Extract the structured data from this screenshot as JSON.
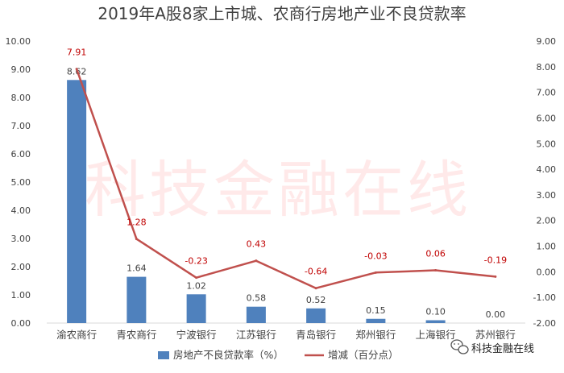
{
  "chart_data": {
    "type": "bar",
    "title": "2019年A股8家上市城、农商行房地产业不良贷款率",
    "categories": [
      "渝农商行",
      "青农商行",
      "宁波银行",
      "江苏银行",
      "青岛银行",
      "郑州银行",
      "上海银行",
      "苏州银行"
    ],
    "left_axis": {
      "min": 0,
      "max": 10,
      "step": 1,
      "format": "2dp"
    },
    "right_axis": {
      "min": -2,
      "max": 9,
      "step": 1,
      "format": "2dp"
    },
    "series": [
      {
        "name": "房地产不良贷款率（%）",
        "type": "bar",
        "axis": "left",
        "color": "#4f81bd",
        "values": [
          8.62,
          1.64,
          1.02,
          0.58,
          0.52,
          0.15,
          0.1,
          0.0
        ],
        "labels": [
          "8.62",
          "1.64",
          "1.02",
          "0.58",
          "0.52",
          "0.15",
          "0.10",
          "0.00"
        ]
      },
      {
        "name": "增减（百分点）",
        "type": "line",
        "axis": "right",
        "color": "#c0504d",
        "values": [
          7.91,
          1.28,
          -0.23,
          0.43,
          -0.64,
          -0.03,
          0.06,
          -0.19
        ],
        "labels": [
          "7.91",
          "1.28",
          "-0.23",
          "0.43",
          "-0.64",
          "-0.03",
          "0.06",
          "-0.19"
        ]
      }
    ],
    "grid": false,
    "legend_position": "bottom"
  },
  "watermark": "科技金融在线",
  "brand": {
    "icon": "wechat-icon",
    "name": "科技金融在线"
  }
}
